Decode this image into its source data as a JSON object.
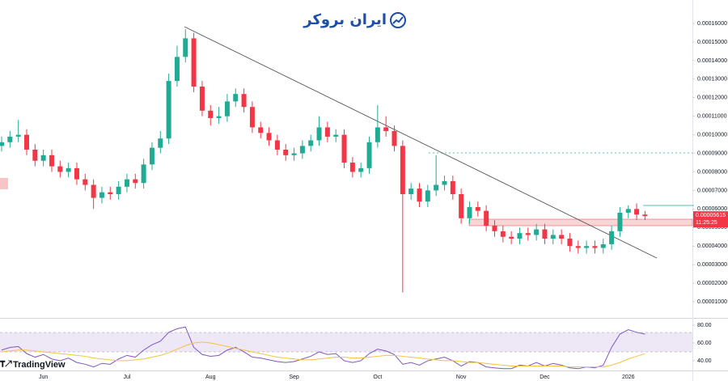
{
  "watermark": "ایران بروکر",
  "brand": "TradingView",
  "chart_data": [
    {
      "type": "candlestick",
      "up_color": "#22ab94",
      "down_color": "#f23645",
      "categories": [
        null,
        null,
        null,
        null,
        null,
        "Jun",
        null,
        null,
        null,
        null,
        null,
        null,
        null,
        null,
        null,
        "Jul",
        null,
        null,
        null,
        null,
        null,
        null,
        null,
        null,
        null,
        "Aug",
        null,
        null,
        null,
        null,
        null,
        null,
        null,
        null,
        null,
        "Sep",
        null,
        null,
        null,
        null,
        null,
        null,
        null,
        null,
        null,
        "Oct",
        null,
        null,
        null,
        null,
        null,
        null,
        null,
        null,
        null,
        "Nov",
        null,
        null,
        null,
        null,
        null,
        null,
        null,
        null,
        null,
        "Dec",
        null,
        null,
        null,
        null,
        null,
        null,
        null,
        null,
        null,
        "2026",
        null,
        null
      ],
      "open": [
        9.4e-05,
        9.6e-05,
        9.9e-05,
        0.0001,
        9.2e-05,
        8.6e-05,
        8.9e-05,
        8.3e-05,
        8e-05,
        8.2e-05,
        7.6e-05,
        7.3e-05,
        6.6e-05,
        6.9e-05,
        6.8e-05,
        7.2e-05,
        7.6e-05,
        7.4e-05,
        8.4e-05,
        9.3e-05,
        9.8e-05,
        0.000129,
        0.000142,
        0.000152,
        0.000126,
        0.000113,
        0.000109,
        0.00011,
        0.000118,
        0.000122,
        0.000115,
        0.000104,
        0.000101,
        9.7e-05,
        9.2e-05,
        8.9e-05,
        9e-05,
        9.4e-05,
        9.7e-05,
        0.000104,
        9.9e-05,
        0.0001,
        8.5e-05,
        8e-05,
        8.2e-05,
        9.6e-05,
        0.000104,
        0.000102,
        9.4e-05,
        6.8e-05,
        7.1e-05,
        6.4e-05,
        7e-05,
        7.3e-05,
        7.5e-05,
        6.8e-05,
        5.5e-05,
        6.1e-05,
        5.9e-05,
        5.1e-05,
        4.8e-05,
        4.5e-05,
        4.4e-05,
        4.7e-05,
        4.6e-05,
        4.9e-05,
        4.4e-05,
        4.6e-05,
        4.4e-05,
        4e-05,
        3.9e-05,
        4e-05,
        3.9e-05,
        4.1e-05,
        4.8e-05,
        5.8e-05,
        6e-05,
        5.7e-05
      ],
      "high": [
        9.9e-05,
        0.000102,
        0.000108,
        0.000103,
        9.5e-05,
        9.2e-05,
        9.2e-05,
        8.6e-05,
        8.5e-05,
        8.5e-05,
        7.9e-05,
        7.6e-05,
        7.2e-05,
        7.2e-05,
        7.5e-05,
        7.9e-05,
        7.9e-05,
        8.7e-05,
        9.6e-05,
        0.000102,
        0.000133,
        0.000148,
        0.000157,
        0.000155,
        0.000129,
        0.000116,
        0.000115,
        0.000122,
        0.000125,
        0.000125,
        0.000118,
        0.000107,
        0.000104,
        0.0001,
        9.5e-05,
        9.3e-05,
        9.7e-05,
        0.0001,
        0.00011,
        0.000107,
        0.000103,
        0.000103,
        8.8e-05,
        8.5e-05,
        9.9e-05,
        0.000116,
        0.00011,
        0.000105,
        9.7e-05,
        7.4e-05,
        7.4e-05,
        7.3e-05,
        8.9e-05,
        7.8e-05,
        7.8e-05,
        7.1e-05,
        6.4e-05,
        6.4e-05,
        6.2e-05,
        5.4e-05,
        5.1e-05,
        4.8e-05,
        5e-05,
        5e-05,
        5.2e-05,
        5.2e-05,
        4.9e-05,
        4.9e-05,
        4.7e-05,
        4.3e-05,
        4.3e-05,
        4.3e-05,
        4.4e-05,
        5.1e-05,
        6.1e-05,
        6.2e-05,
        6.3e-05,
        5.9e-05
      ],
      "low": [
        9.1e-05,
        9.3e-05,
        9.6e-05,
        8.9e-05,
        8.3e-05,
        8.3e-05,
        8e-05,
        7.7e-05,
        7.7e-05,
        7.3e-05,
        7e-05,
        6e-05,
        6.3e-05,
        6.5e-05,
        6.5e-05,
        6.9e-05,
        7.1e-05,
        7.1e-05,
        8.1e-05,
        9e-05,
        9.5e-05,
        0.000126,
        0.000139,
        0.000123,
        0.00011,
        0.000105,
        0.000106,
        0.000107,
        0.000115,
        0.000112,
        0.000101,
        9.8e-05,
        9.4e-05,
        8.9e-05,
        8.6e-05,
        8.6e-05,
        8.7e-05,
        9.1e-05,
        9.4e-05,
        9.6e-05,
        9.6e-05,
        8.2e-05,
        7.7e-05,
        7.7e-05,
        7.9e-05,
        9.3e-05,
        9.9e-05,
        9.1e-05,
        1.5e-05,
        6.5e-05,
        6.1e-05,
        6.1e-05,
        6.7e-05,
        7e-05,
        6.5e-05,
        5.2e-05,
        5.2e-05,
        5.6e-05,
        4.8e-05,
        4.5e-05,
        4.2e-05,
        4.1e-05,
        4.1e-05,
        4.3e-05,
        4.3e-05,
        4.1e-05,
        4.1e-05,
        4.1e-05,
        3.7e-05,
        3.6e-05,
        3.6e-05,
        3.6e-05,
        3.6e-05,
        3.8e-05,
        4.5e-05,
        5.5e-05,
        5.4e-05,
        5.4e-05
      ],
      "close": [
        9.6e-05,
        9.9e-05,
        0.0001,
        9.2e-05,
        8.6e-05,
        8.9e-05,
        8.3e-05,
        8e-05,
        8.2e-05,
        7.6e-05,
        7.3e-05,
        6.6e-05,
        6.9e-05,
        6.8e-05,
        7.2e-05,
        7.6e-05,
        7.4e-05,
        8.4e-05,
        9.3e-05,
        9.8e-05,
        0.000129,
        0.000142,
        0.000152,
        0.000126,
        0.000113,
        0.000109,
        0.00011,
        0.000118,
        0.000122,
        0.000115,
        0.000104,
        0.000101,
        9.7e-05,
        9.2e-05,
        8.9e-05,
        9e-05,
        9.4e-05,
        9.7e-05,
        0.000104,
        9.9e-05,
        0.0001,
        8.5e-05,
        8e-05,
        8.2e-05,
        9.6e-05,
        0.000104,
        0.000102,
        9.4e-05,
        6.8e-05,
        7.1e-05,
        6.4e-05,
        7e-05,
        7.3e-05,
        7.5e-05,
        6.8e-05,
        5.5e-05,
        6.1e-05,
        5.9e-05,
        5.1e-05,
        4.8e-05,
        4.5e-05,
        4.4e-05,
        4.7e-05,
        4.6e-05,
        4.9e-05,
        4.4e-05,
        4.6e-05,
        4.4e-05,
        4e-05,
        3.9e-05,
        4e-05,
        3.9e-05,
        4.1e-05,
        4.8e-05,
        5.8e-05,
        6e-05,
        5.7e-05,
        5.615e-05
      ],
      "last_price": {
        "value": 5.615e-05,
        "label": "0.00005615"
      },
      "countdown": "11:25:25",
      "ylim": [
        1.71e-06,
        0.00017267
      ],
      "yticks": [
        {
          "value": 1e-05,
          "label": "0.00001000"
        },
        {
          "value": 2e-05,
          "label": "0.00002000"
        },
        {
          "value": 3e-05,
          "label": "0.00003000"
        },
        {
          "value": 4e-05,
          "label": "0.00004000"
        },
        {
          "value": 5e-05,
          "label": "0.00005000"
        },
        {
          "value": 6e-05,
          "label": "0.00006000"
        },
        {
          "value": 7e-05,
          "label": "0.00007000"
        },
        {
          "value": 8e-05,
          "label": "0.00008000"
        },
        {
          "value": 9e-05,
          "label": "0.00009000"
        },
        {
          "value": 0.0001,
          "label": "0.00010000"
        },
        {
          "value": 0.00011,
          "label": "0.00011000"
        },
        {
          "value": 0.00012,
          "label": "0.00012000"
        },
        {
          "value": 0.00013,
          "label": "0.00013000"
        },
        {
          "value": 0.00014,
          "label": "0.00014000"
        },
        {
          "value": 0.00015,
          "label": "0.00015000"
        },
        {
          "value": 0.00016,
          "label": "0.00016000"
        }
      ]
    },
    {
      "type": "line",
      "ylim": [
        29,
        86.4
      ],
      "yticks": [
        {
          "value": 40,
          "label": "40.00"
        },
        {
          "value": 60,
          "label": "60.00"
        },
        {
          "value": 80,
          "label": "80.00"
        }
      ],
      "series": [
        {
          "color": "#7e57c2",
          "values": [
            52,
            55,
            56,
            48,
            44,
            47,
            42,
            40,
            43,
            38,
            36,
            33,
            37,
            36,
            42,
            46,
            44,
            52,
            58,
            62,
            72,
            76,
            78,
            55,
            47,
            45,
            46,
            52,
            55,
            50,
            44,
            43,
            41,
            39,
            38,
            39,
            42,
            45,
            50,
            47,
            48,
            40,
            38,
            40,
            48,
            53,
            51,
            47,
            36,
            38,
            35,
            40,
            42,
            44,
            40,
            34,
            39,
            38,
            33,
            32,
            31,
            31,
            35,
            34,
            38,
            34,
            37,
            35,
            32,
            31,
            33,
            32,
            35,
            55,
            70,
            75,
            72,
            70
          ]
        },
        {
          "color": "#f5c242",
          "values": [
            50,
            51,
            52,
            52,
            51,
            50,
            49,
            48,
            47,
            46,
            45,
            43,
            42,
            41,
            40,
            40,
            41,
            42,
            44,
            46,
            49,
            53,
            57,
            60,
            61,
            60,
            58,
            56,
            54,
            52,
            50,
            48,
            46,
            44,
            43,
            42,
            41,
            41,
            42,
            43,
            44,
            44,
            43,
            43,
            44,
            45,
            46,
            46,
            45,
            44,
            43,
            42,
            41,
            40,
            40,
            39,
            38,
            38,
            37,
            36,
            35,
            34,
            34,
            34,
            34,
            34,
            34,
            34,
            33,
            33,
            33,
            33,
            33,
            35,
            38,
            42,
            45,
            48
          ]
        }
      ]
    }
  ]
}
